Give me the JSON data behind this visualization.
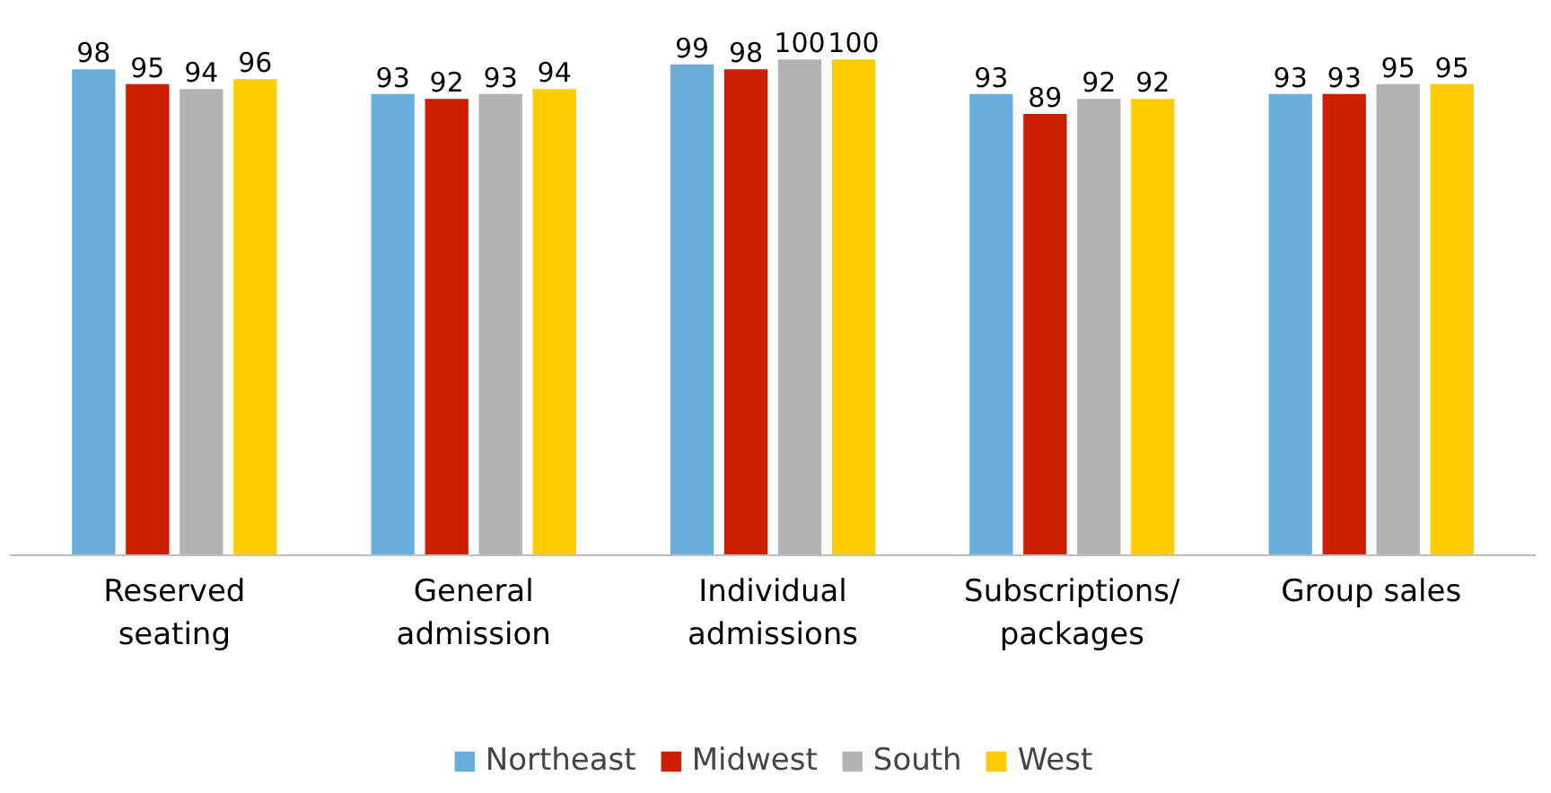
{
  "chart_data": {
    "type": "bar",
    "categories": [
      "Reserved\nseating",
      "General\nadmission",
      "Individual\nadmissions",
      "Subscriptions/\npackages",
      "Group sales"
    ],
    "series": [
      {
        "name": "Northeast",
        "color": "#6aaede",
        "values": [
          98,
          93,
          99,
          93,
          93
        ]
      },
      {
        "name": "Midwest",
        "color": "#cc1f00",
        "values": [
          95,
          92,
          98,
          89,
          93
        ]
      },
      {
        "name": "South",
        "color": "#b3b3b3",
        "values": [
          94,
          93,
          100,
          92,
          95
        ]
      },
      {
        "name": "West",
        "color": "#ffcc00",
        "values": [
          96,
          94,
          100,
          92,
          95
        ]
      }
    ],
    "data_labels": true,
    "grid": false,
    "legend": "bottom"
  }
}
